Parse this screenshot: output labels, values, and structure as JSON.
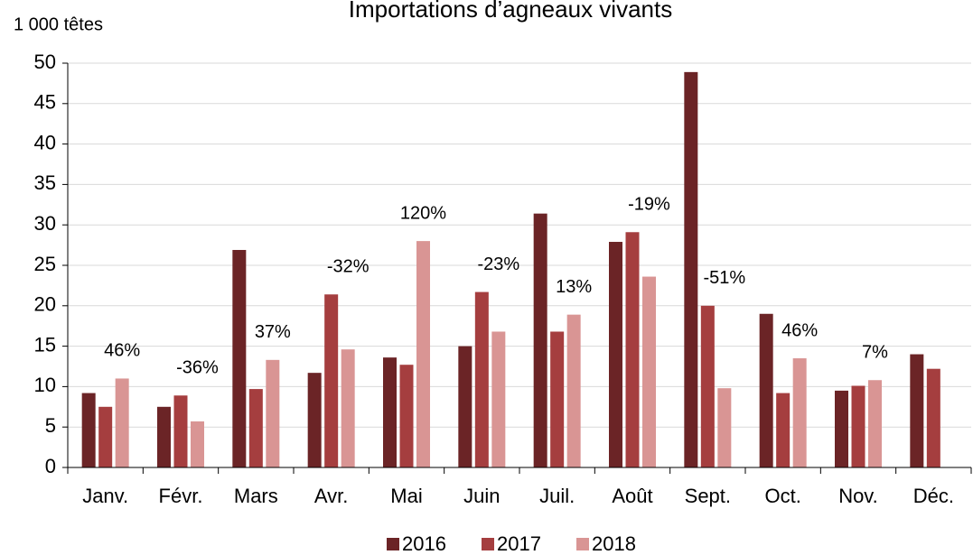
{
  "chart_data": {
    "type": "bar",
    "title": "Importations d’agneaux vivants",
    "y_label": "1 000 têtes",
    "categories": [
      "Janv.",
      "Févr.",
      "Mars",
      "Avr.",
      "Mai",
      "Juin",
      "Juil.",
      "Août",
      "Sept.",
      "Oct.",
      "Nov.",
      "Déc."
    ],
    "series": [
      {
        "name": "2016",
        "color": "#6b2426",
        "values": [
          9.2,
          7.5,
          26.9,
          11.7,
          13.6,
          15.0,
          31.4,
          27.9,
          48.9,
          19.0,
          9.5,
          14.0
        ]
      },
      {
        "name": "2017",
        "color": "#a53e3f",
        "values": [
          7.5,
          8.9,
          9.7,
          21.4,
          12.7,
          21.7,
          16.8,
          29.1,
          20.0,
          9.2,
          10.1,
          12.2
        ]
      },
      {
        "name": "2018",
        "color": "#d99594",
        "values": [
          11.0,
          5.7,
          13.3,
          14.6,
          28.0,
          16.8,
          18.9,
          23.6,
          9.8,
          13.5,
          10.8,
          null
        ]
      }
    ],
    "annotations": [
      "46%",
      "-36%",
      "37%",
      "-32%",
      "120%",
      "-23%",
      "13%",
      "-19%",
      "-51%",
      "46%",
      "7%",
      null
    ],
    "ylim": [
      0,
      50
    ],
    "yticks": [
      0,
      5,
      10,
      15,
      20,
      25,
      30,
      35,
      40,
      45,
      50
    ],
    "grid": true,
    "legend": "bottom"
  }
}
